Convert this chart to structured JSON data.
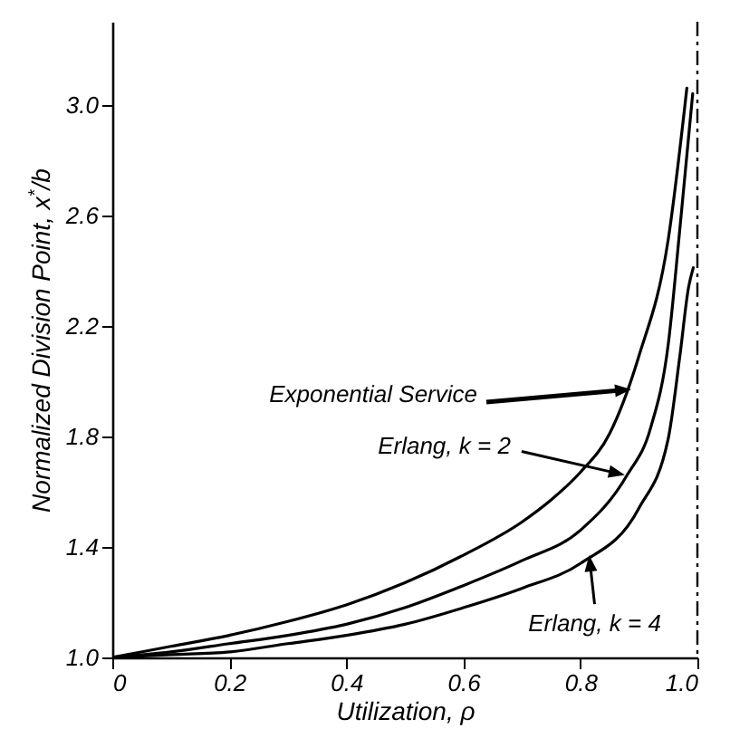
{
  "chart_data": {
    "type": "line",
    "xlabel": "Utilization, ρ",
    "ylabel": "Normalized Division Point, x$^{*}$/b",
    "xlim": [
      0,
      1.0
    ],
    "xticks": [
      {
        "value": 0,
        "label": "0"
      },
      0.2,
      0.4,
      0.6,
      0.8,
      {
        "value": 1.0,
        "label": "1.0"
      }
    ],
    "ylim": [
      1.0,
      3.3
    ],
    "yticks": [
      {
        "value": 1.0,
        "label": "1.0"
      },
      1.4,
      1.8,
      2.2,
      2.6,
      {
        "value": 3.0,
        "label": "3.0"
      }
    ],
    "grid": false,
    "marker": "none",
    "line_style": "solid",
    "series": [
      {
        "color": "#000000",
        "x": [
          0,
          0.1,
          0.2,
          0.3,
          0.4,
          0.5,
          0.6,
          0.7,
          0.75,
          0.8,
          0.85,
          0.9,
          0.95,
          0.982
        ],
        "values": [
          1.0,
          1.04,
          1.08,
          1.13,
          1.19,
          1.27,
          1.37,
          1.49,
          1.57,
          1.67,
          1.81,
          2.09,
          2.51,
          3.06
        ]
      },
      {
        "color": "#000000",
        "x": [
          0,
          0.1,
          0.2,
          0.3,
          0.4,
          0.5,
          0.6,
          0.7,
          0.8,
          0.88,
          0.92,
          0.95,
          0.97,
          0.992
        ],
        "values": [
          1.0,
          1.02,
          1.05,
          1.08,
          1.12,
          1.18,
          1.26,
          1.35,
          1.46,
          1.66,
          1.83,
          2.13,
          2.55,
          3.04
        ]
      },
      {
        "color": "#000000",
        "x": [
          0,
          0.1,
          0.2,
          0.3,
          0.4,
          0.5,
          0.6,
          0.7,
          0.8,
          0.9,
          0.95,
          0.97,
          0.985,
          0.993
        ],
        "values": [
          1.0,
          1.01,
          1.02,
          1.05,
          1.08,
          1.12,
          1.18,
          1.25,
          1.34,
          1.54,
          1.79,
          2.09,
          2.34,
          2.41
        ]
      }
    ],
    "annotations": [
      {
        "text": "Exponential Service",
        "x": 0.887,
        "y": 1.97
      },
      {
        "text": "Erlang, k = 2",
        "x": 0.876,
        "y": 1.66
      },
      {
        "text": "Erlang, k = 4",
        "x": 0.815,
        "y": 1.37
      }
    ],
    "ref_lines": [
      {
        "axis": "x",
        "value": 1.0,
        "line_style": "dashed",
        "color": "#000000"
      }
    ]
  }
}
